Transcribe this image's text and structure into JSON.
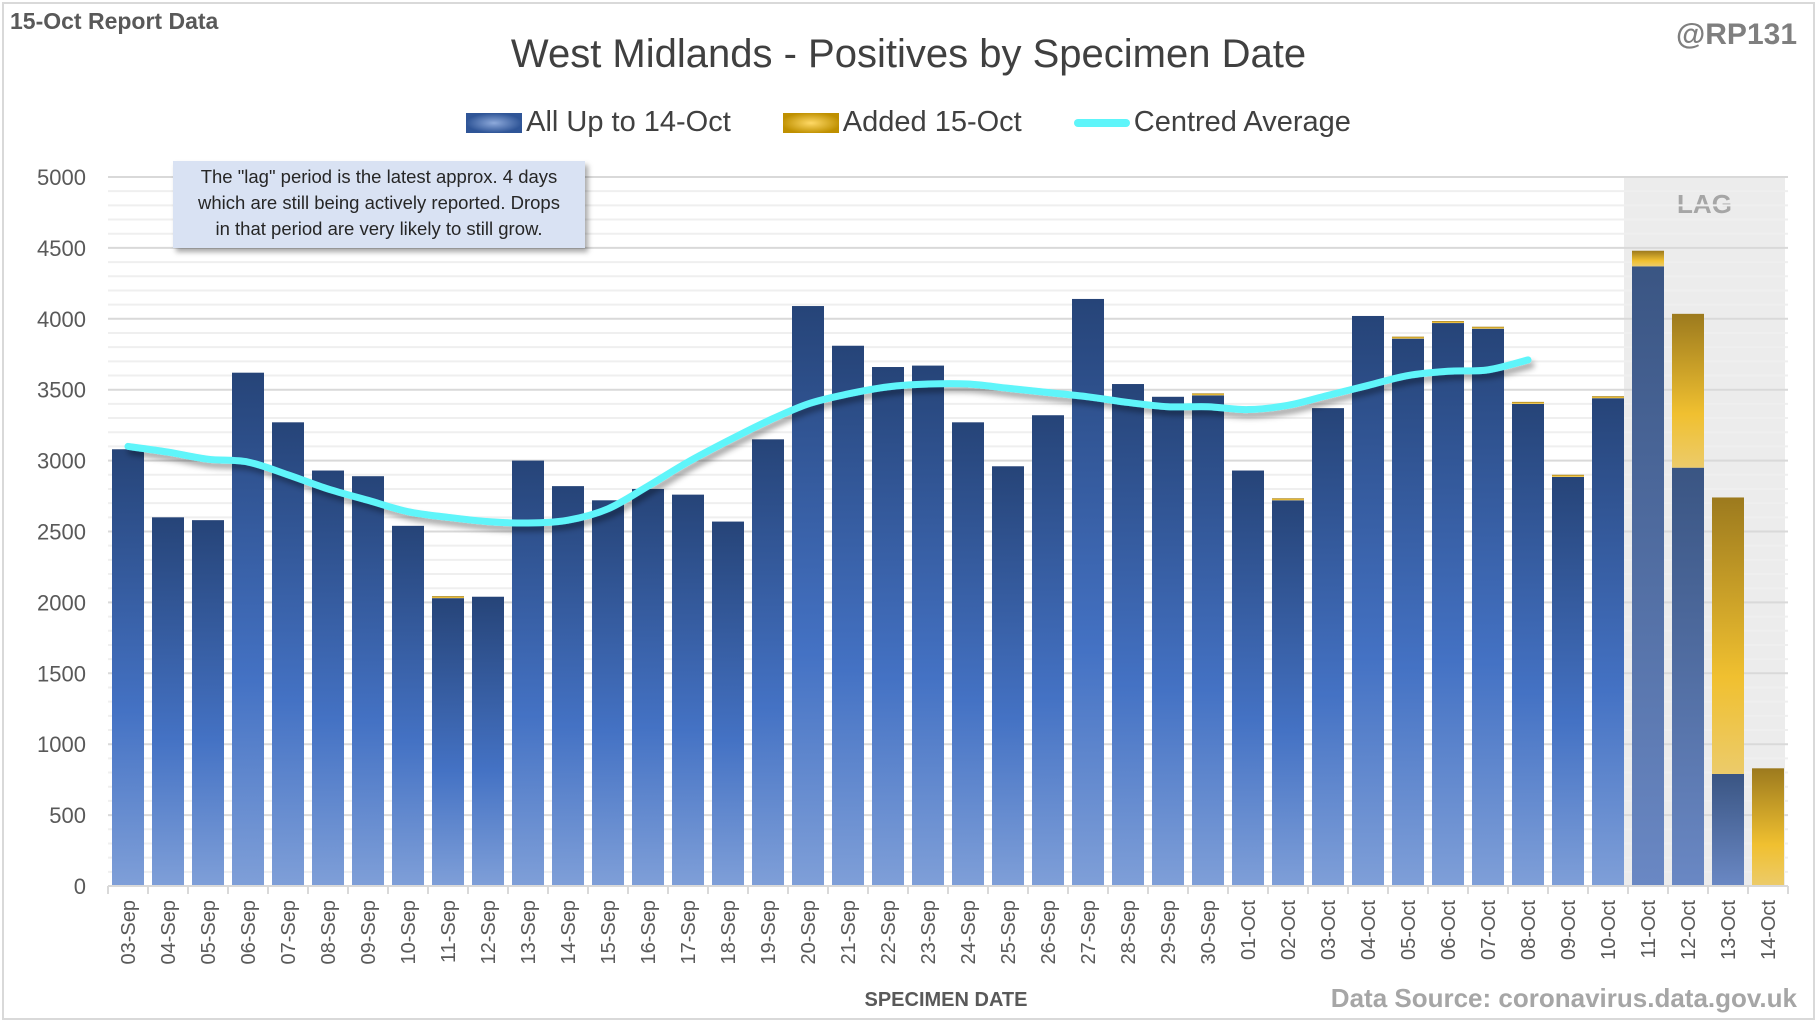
{
  "header": {
    "report_label": "15-Oct Report Data",
    "handle": "@RP131",
    "source": "Data Source: coronavirus.data.gov.uk"
  },
  "annotation": {
    "lines": [
      "The \"lag\" period is the latest approx. 4 days",
      "which are still being actively reported.  Drops",
      "in that period are very likely to still grow."
    ]
  },
  "colors": {
    "blue_top": "#264478",
    "blue_bottom": "#7f9fd8",
    "gold_top": "#9c7a1e",
    "gold_mid": "#f0c030",
    "gold_bottom": "#eccb6a",
    "line": "#5ef5fa",
    "lag_shade": "#ececec"
  },
  "chart_data": {
    "type": "bar",
    "stacked": true,
    "title": "West Midlands - Positives by Specimen Date",
    "xlabel": "SPECIMEN DATE",
    "ylabel": "",
    "ylim": [
      0,
      5000
    ],
    "yticks": [
      0,
      500,
      1000,
      1500,
      2000,
      2500,
      3000,
      3500,
      4000,
      4500,
      5000
    ],
    "grid": true,
    "legend": "top-center",
    "lag_region": {
      "label": "LAG",
      "from": "11-Oct",
      "to": "14-Oct"
    },
    "categories": [
      "03-Sep",
      "04-Sep",
      "05-Sep",
      "06-Sep",
      "07-Sep",
      "08-Sep",
      "09-Sep",
      "10-Sep",
      "11-Sep",
      "12-Sep",
      "13-Sep",
      "14-Sep",
      "15-Sep",
      "16-Sep",
      "17-Sep",
      "18-Sep",
      "19-Sep",
      "20-Sep",
      "21-Sep",
      "22-Sep",
      "23-Sep",
      "24-Sep",
      "25-Sep",
      "26-Sep",
      "27-Sep",
      "28-Sep",
      "29-Sep",
      "30-Sep",
      "01-Oct",
      "02-Oct",
      "03-Oct",
      "04-Oct",
      "05-Oct",
      "06-Oct",
      "07-Oct",
      "08-Oct",
      "09-Oct",
      "10-Oct",
      "11-Oct",
      "12-Oct",
      "13-Oct",
      "14-Oct"
    ],
    "series": [
      {
        "name": "All Up to 14-Oct",
        "type": "bar",
        "values": [
          3080,
          2600,
          2580,
          3620,
          3270,
          2930,
          2890,
          2540,
          2030,
          2040,
          3000,
          2820,
          2720,
          2800,
          2760,
          2570,
          3150,
          4090,
          3810,
          3660,
          3670,
          3270,
          2960,
          3320,
          4140,
          3540,
          3450,
          3460,
          2930,
          2720,
          3370,
          4020,
          3860,
          3970,
          3930,
          3400,
          2885,
          3440,
          4370,
          2950,
          790,
          0
        ]
      },
      {
        "name": "Added 15-Oct",
        "type": "bar",
        "values": [
          0,
          0,
          0,
          0,
          0,
          0,
          0,
          0,
          10,
          0,
          0,
          0,
          0,
          0,
          0,
          0,
          0,
          0,
          0,
          0,
          0,
          0,
          0,
          0,
          0,
          0,
          0,
          10,
          0,
          10,
          0,
          0,
          10,
          10,
          10,
          10,
          15,
          10,
          110,
          1085,
          1950,
          830
        ]
      },
      {
        "name": "Centred Average",
        "type": "line",
        "values": [
          3100,
          3060,
          3010,
          2990,
          2900,
          2800,
          2720,
          2640,
          2600,
          2570,
          2560,
          2580,
          2660,
          2820,
          2990,
          3140,
          3280,
          3400,
          3470,
          3520,
          3540,
          3540,
          3510,
          3480,
          3450,
          3410,
          3380,
          3380,
          3360,
          3390,
          3460,
          3530,
          3600,
          3630,
          3640,
          3710,
          null,
          null,
          null,
          null,
          null,
          null
        ]
      }
    ]
  }
}
